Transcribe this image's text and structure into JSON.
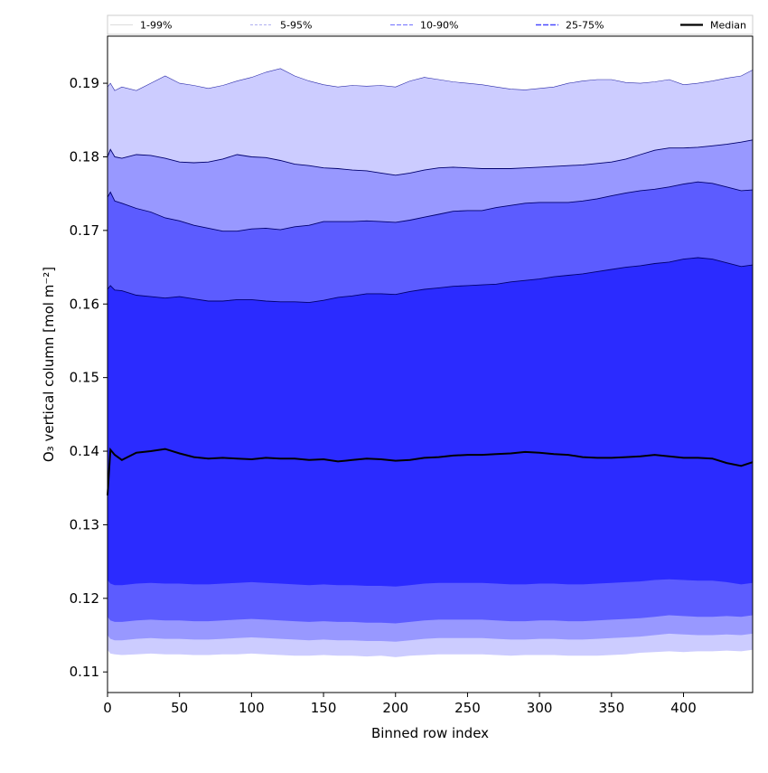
{
  "chart_data": {
    "type": "area",
    "title": "",
    "xlabel": "Binned row index",
    "ylabel": "O₃ vertical column [mol m⁻²]",
    "xlim": [
      0,
      448
    ],
    "ylim": [
      0.1072,
      0.1964
    ],
    "xticks": [
      0,
      50,
      100,
      150,
      200,
      250,
      300,
      350,
      400
    ],
    "yticks": [
      0.11,
      0.12,
      0.13,
      0.14,
      0.15,
      0.16,
      0.17,
      0.18,
      0.19
    ],
    "x": [
      0,
      2,
      5,
      10,
      20,
      30,
      40,
      50,
      60,
      70,
      80,
      90,
      100,
      110,
      120,
      130,
      140,
      150,
      160,
      170,
      180,
      190,
      200,
      210,
      220,
      230,
      240,
      250,
      260,
      270,
      280,
      290,
      300,
      310,
      320,
      330,
      340,
      350,
      360,
      370,
      380,
      390,
      400,
      410,
      420,
      430,
      440,
      448
    ],
    "grid": false,
    "legend_position": "top",
    "colors": {
      "band_1_99": "#ccccff",
      "band_5_95": "#9898ff",
      "band_10_90": "#5c5cff",
      "band_25_75": "#2b2bff",
      "edge": "#00006e",
      "median": "#000000"
    },
    "series": [
      {
        "name": "1-99%",
        "style": "fill",
        "lower": [
          0.113,
          0.1125,
          0.1124,
          0.1123,
          0.1124,
          0.1125,
          0.1124,
          0.1124,
          0.1123,
          0.1123,
          0.1124,
          0.1124,
          0.1125,
          0.1124,
          0.1123,
          0.1122,
          0.1122,
          0.1123,
          0.1122,
          0.1122,
          0.1121,
          0.1122,
          0.112,
          0.1122,
          0.1123,
          0.1124,
          0.1124,
          0.1124,
          0.1124,
          0.1123,
          0.1122,
          0.1123,
          0.1123,
          0.1123,
          0.1122,
          0.1122,
          0.1122,
          0.1123,
          0.1124,
          0.1126,
          0.1127,
          0.1128,
          0.1127,
          0.1128,
          0.1128,
          0.1129,
          0.1128,
          0.113
        ],
        "upper": [
          0.1895,
          0.19,
          0.189,
          0.1895,
          0.189,
          0.19,
          0.191,
          0.19,
          0.1897,
          0.1893,
          0.1897,
          0.1903,
          0.1908,
          0.1915,
          0.192,
          0.191,
          0.1903,
          0.1898,
          0.1895,
          0.1897,
          0.1896,
          0.1897,
          0.1895,
          0.1903,
          0.1908,
          0.1905,
          0.1902,
          0.19,
          0.1898,
          0.1895,
          0.1892,
          0.1891,
          0.1893,
          0.1895,
          0.19,
          0.1903,
          0.1905,
          0.1905,
          0.1901,
          0.19,
          0.1902,
          0.1905,
          0.1898,
          0.19,
          0.1903,
          0.1907,
          0.191,
          0.1918
        ]
      },
      {
        "name": "5-95%",
        "style": "fill",
        "lower": [
          0.115,
          0.1145,
          0.1143,
          0.1143,
          0.1145,
          0.1146,
          0.1145,
          0.1145,
          0.1144,
          0.1144,
          0.1145,
          0.1146,
          0.1147,
          0.1146,
          0.1145,
          0.1144,
          0.1143,
          0.1144,
          0.1143,
          0.1143,
          0.1142,
          0.1142,
          0.1141,
          0.1143,
          0.1145,
          0.1146,
          0.1146,
          0.1146,
          0.1146,
          0.1145,
          0.1144,
          0.1144,
          0.1145,
          0.1145,
          0.1144,
          0.1144,
          0.1145,
          0.1146,
          0.1147,
          0.1148,
          0.115,
          0.1152,
          0.1151,
          0.115,
          0.115,
          0.1151,
          0.115,
          0.1152
        ],
        "upper": [
          0.18,
          0.181,
          0.18,
          0.1798,
          0.1803,
          0.1802,
          0.1798,
          0.1793,
          0.1792,
          0.1793,
          0.1797,
          0.1803,
          0.18,
          0.1799,
          0.1795,
          0.179,
          0.1788,
          0.1785,
          0.1784,
          0.1782,
          0.1781,
          0.1778,
          0.1775,
          0.1778,
          0.1782,
          0.1785,
          0.1786,
          0.1785,
          0.1784,
          0.1784,
          0.1784,
          0.1785,
          0.1786,
          0.1787,
          0.1788,
          0.1789,
          0.1791,
          0.1793,
          0.1797,
          0.1803,
          0.1809,
          0.1812,
          0.1812,
          0.1813,
          0.1815,
          0.1817,
          0.182,
          0.1823
        ]
      },
      {
        "name": "10-90%",
        "style": "fill",
        "lower": [
          0.1175,
          0.117,
          0.1168,
          0.1168,
          0.117,
          0.1171,
          0.117,
          0.117,
          0.1169,
          0.1169,
          0.117,
          0.1171,
          0.1172,
          0.1171,
          0.117,
          0.1169,
          0.1168,
          0.1169,
          0.1168,
          0.1168,
          0.1167,
          0.1167,
          0.1166,
          0.1168,
          0.117,
          0.1171,
          0.1171,
          0.1171,
          0.1171,
          0.117,
          0.1169,
          0.1169,
          0.117,
          0.117,
          0.1169,
          0.1169,
          0.117,
          0.1171,
          0.1172,
          0.1173,
          0.1175,
          0.1177,
          0.1176,
          0.1175,
          0.1175,
          0.1176,
          0.1175,
          0.1177
        ],
        "upper": [
          0.1745,
          0.1752,
          0.174,
          0.1737,
          0.173,
          0.1725,
          0.1717,
          0.1713,
          0.1707,
          0.1703,
          0.1699,
          0.1699,
          0.1702,
          0.1703,
          0.1701,
          0.1705,
          0.1707,
          0.1712,
          0.1712,
          0.1712,
          0.1713,
          0.1712,
          0.1711,
          0.1714,
          0.1718,
          0.1722,
          0.1726,
          0.1727,
          0.1727,
          0.1731,
          0.1734,
          0.1737,
          0.1738,
          0.1738,
          0.1738,
          0.174,
          0.1743,
          0.1747,
          0.1751,
          0.1754,
          0.1756,
          0.1759,
          0.1763,
          0.1766,
          0.1764,
          0.1759,
          0.1754,
          0.1755
        ]
      },
      {
        "name": "25-75%",
        "style": "fill",
        "lower": [
          0.1225,
          0.122,
          0.1218,
          0.1218,
          0.122,
          0.1221,
          0.122,
          0.122,
          0.1219,
          0.1219,
          0.122,
          0.1221,
          0.1222,
          0.1221,
          0.122,
          0.1219,
          0.1218,
          0.1219,
          0.1218,
          0.1218,
          0.1217,
          0.1217,
          0.1216,
          0.1218,
          0.122,
          0.1221,
          0.1221,
          0.1221,
          0.1221,
          0.122,
          0.1219,
          0.1219,
          0.122,
          0.122,
          0.1219,
          0.1219,
          0.122,
          0.1221,
          0.1222,
          0.1223,
          0.1225,
          0.1226,
          0.1225,
          0.1224,
          0.1224,
          0.1222,
          0.1219,
          0.1221
        ],
        "upper": [
          0.162,
          0.1625,
          0.1619,
          0.1618,
          0.1612,
          0.161,
          0.1608,
          0.161,
          0.1607,
          0.1604,
          0.1604,
          0.1606,
          0.1606,
          0.1604,
          0.1603,
          0.1603,
          0.1602,
          0.1605,
          0.1609,
          0.1611,
          0.1614,
          0.1614,
          0.1613,
          0.1617,
          0.162,
          0.1622,
          0.1624,
          0.1625,
          0.1626,
          0.1627,
          0.163,
          0.1632,
          0.1634,
          0.1637,
          0.1639,
          0.1641,
          0.1644,
          0.1647,
          0.165,
          0.1652,
          0.1655,
          0.1657,
          0.1661,
          0.1663,
          0.1661,
          0.1656,
          0.1651,
          0.1653
        ]
      },
      {
        "name": "Median",
        "style": "line",
        "values": [
          0.134,
          0.1402,
          0.1395,
          0.1388,
          0.1398,
          0.14,
          0.1403,
          0.1397,
          0.1392,
          0.139,
          0.1391,
          0.139,
          0.1389,
          0.1391,
          0.139,
          0.139,
          0.1388,
          0.1389,
          0.1386,
          0.1388,
          0.139,
          0.1389,
          0.1387,
          0.1388,
          0.1391,
          0.1392,
          0.1394,
          0.1395,
          0.1395,
          0.1396,
          0.1397,
          0.1399,
          0.1398,
          0.1396,
          0.1395,
          0.1392,
          0.1391,
          0.1391,
          0.1392,
          0.1393,
          0.1395,
          0.1393,
          0.1391,
          0.1391,
          0.139,
          0.1384,
          0.138,
          0.1385
        ]
      }
    ]
  }
}
